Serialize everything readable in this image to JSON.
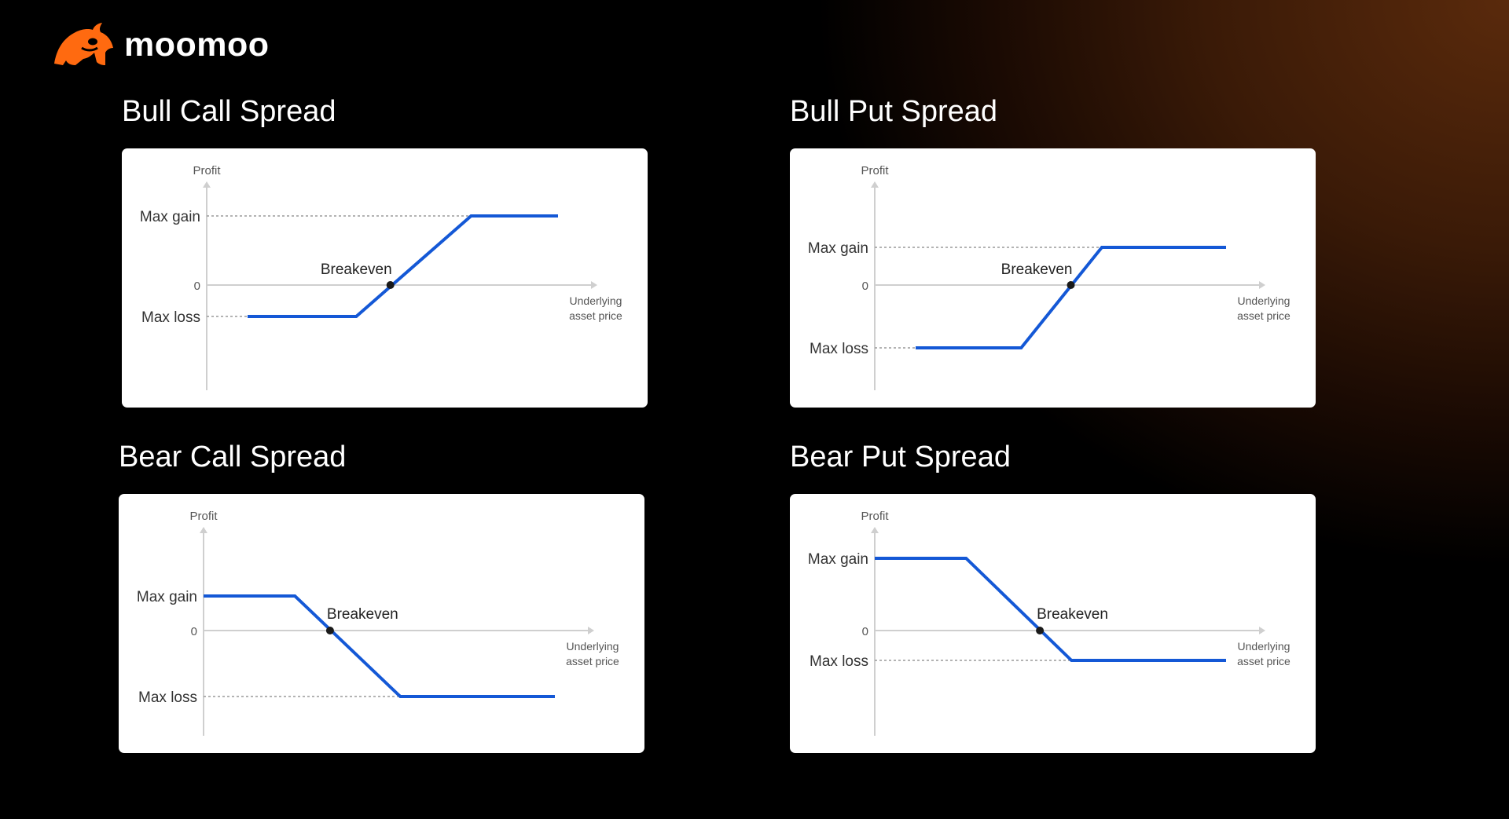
{
  "brand": {
    "name": "moomoo",
    "logo_icon": "bull-head-icon",
    "accent": "#ff6a10"
  },
  "colors": {
    "payoff_line": "#1458d6",
    "axis": "#cfcfcf",
    "guide": "#9a9a9a",
    "marker": "#1a1a1a"
  },
  "chart_data": [
    {
      "type": "line",
      "title": "Bull Call Spread",
      "y_axis_label": "Profit",
      "x_axis_label": [
        "Underlying",
        "asset price"
      ],
      "labels": {
        "max_gain": "Max gain",
        "zero": "0",
        "max_loss": "Max loss",
        "breakeven": "Breakeven"
      },
      "levels": {
        "max_gain": 1.0,
        "zero": 0,
        "max_loss": -0.45
      },
      "series": [
        {
          "x": [
            0,
            0.35,
            0.72,
            1
          ],
          "y": [
            -0.45,
            -0.45,
            1.0,
            1.0
          ]
        }
      ],
      "breakeven_x": 0.46
    },
    {
      "type": "line",
      "title": "Bull Put Spread",
      "y_axis_label": "Profit",
      "x_axis_label": [
        "Underlying",
        "asset price"
      ],
      "labels": {
        "max_gain": "Max gain",
        "zero": "0",
        "max_loss": "Max loss",
        "breakeven": "Breakeven"
      },
      "levels": {
        "max_gain": 0.6,
        "zero": 0,
        "max_loss": -1.0
      },
      "series": [
        {
          "x": [
            0,
            0.34,
            0.6,
            1
          ],
          "y": [
            -1.0,
            -1.0,
            0.6,
            0.6
          ]
        }
      ],
      "breakeven_x": 0.5
    },
    {
      "type": "line",
      "title": "Bear Call Spread",
      "y_axis_label": "Profit",
      "x_axis_label": [
        "Underlying",
        "asset price"
      ],
      "labels": {
        "max_gain": "Max gain",
        "zero": "0",
        "max_loss": "Max loss",
        "breakeven": "Breakeven"
      },
      "levels": {
        "max_gain": 0.52,
        "zero": 0,
        "max_loss": -1.0
      },
      "series": [
        {
          "x": [
            0,
            0.26,
            0.56,
            1
          ],
          "y": [
            0.52,
            0.52,
            -1.0,
            -1.0
          ]
        }
      ],
      "breakeven_x": 0.36
    },
    {
      "type": "line",
      "title": "Bear Put Spread",
      "y_axis_label": "Profit",
      "x_axis_label": [
        "Underlying",
        "asset price"
      ],
      "labels": {
        "max_gain": "Max gain",
        "zero": "0",
        "max_loss": "Max loss",
        "breakeven": "Breakeven"
      },
      "levels": {
        "max_gain": 1.0,
        "zero": 0,
        "max_loss": -0.4
      },
      "series": [
        {
          "x": [
            0,
            0.26,
            0.56,
            1
          ],
          "y": [
            1.0,
            1.0,
            -0.4,
            -0.4
          ]
        }
      ],
      "breakeven_x": 0.47
    }
  ]
}
